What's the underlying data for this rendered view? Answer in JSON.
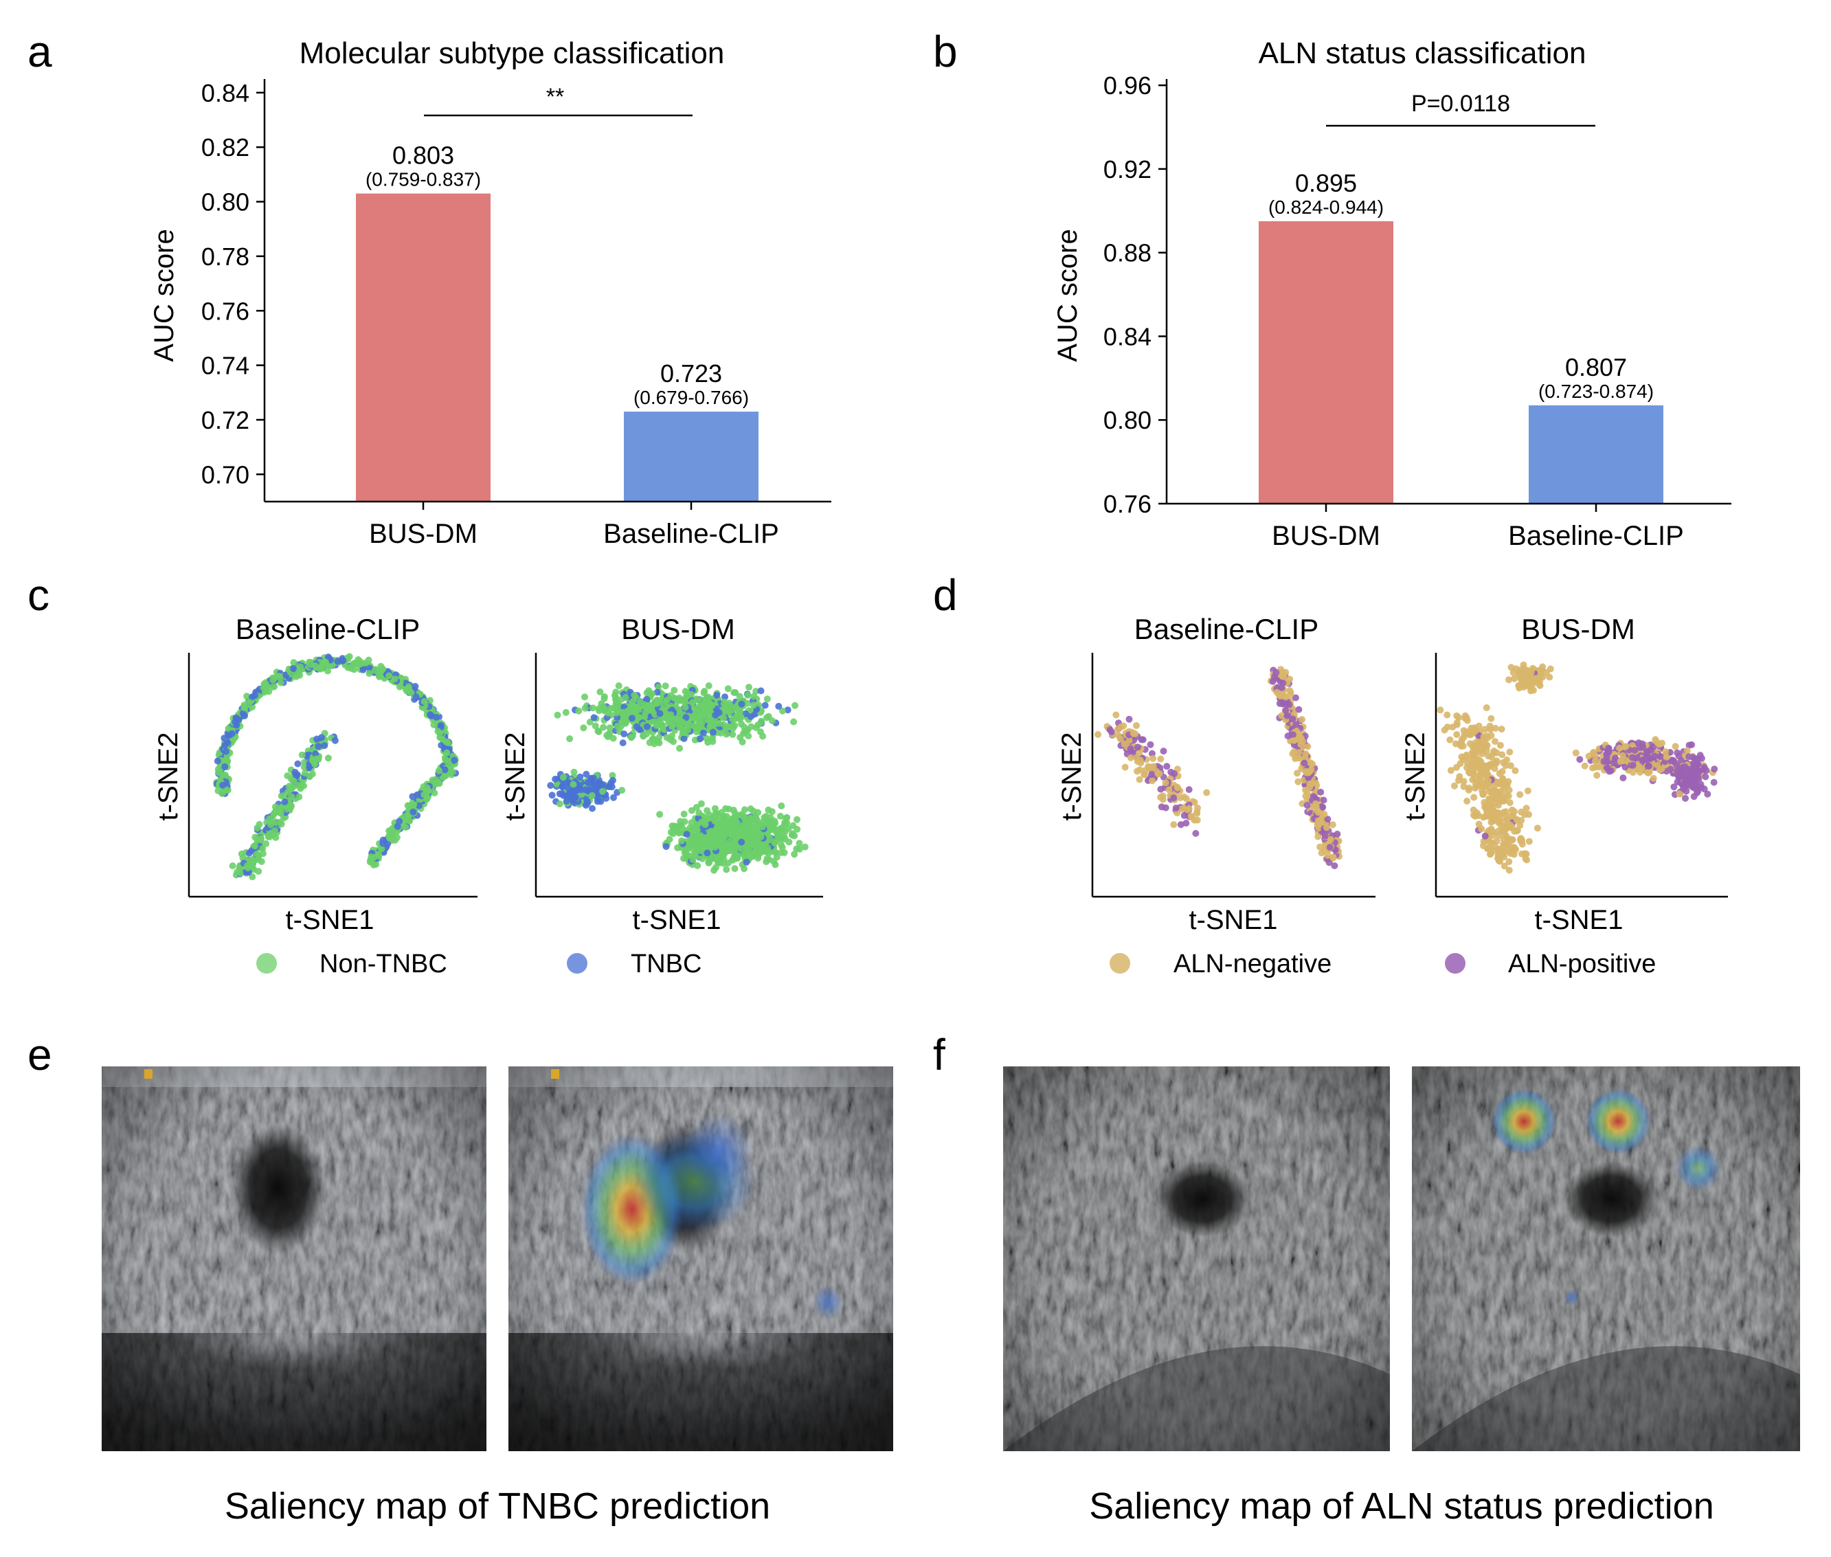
{
  "panel_letters": [
    "a",
    "b",
    "c",
    "d",
    "e",
    "f"
  ],
  "chart_data": [
    {
      "panel": "a",
      "type": "bar",
      "title": "Molecular subtype classification",
      "ylabel": "AUC score",
      "xlabel": "",
      "categories": [
        "BUS-DM",
        "Baseline-CLIP"
      ],
      "values": [
        0.803,
        0.723
      ],
      "value_labels": [
        "0.803",
        "0.723"
      ],
      "ci_labels": [
        "(0.759-0.837)",
        "(0.679-0.766)"
      ],
      "colors": [
        "#de7b7b",
        "#6f96dd"
      ],
      "ylim": [
        0.69,
        0.845
      ],
      "yticks": [
        0.7,
        0.72,
        0.74,
        0.76,
        0.78,
        0.8,
        0.82,
        0.84
      ],
      "ytick_labels": [
        "0.70",
        "0.72",
        "0.74",
        "0.76",
        "0.78",
        "0.80",
        "0.82",
        "0.84"
      ],
      "significance": "**"
    },
    {
      "panel": "b",
      "type": "bar",
      "title": "ALN status classification",
      "ylabel": "AUC score",
      "xlabel": "",
      "categories": [
        "BUS-DM",
        "Baseline-CLIP"
      ],
      "values": [
        0.895,
        0.807
      ],
      "value_labels": [
        "0.895",
        "0.807"
      ],
      "ci_labels": [
        "(0.824-0.944)",
        "(0.723-0.874)"
      ],
      "colors": [
        "#de7b7b",
        "#6f96dd"
      ],
      "ylim": [
        0.76,
        0.963
      ],
      "yticks": [
        0.76,
        0.8,
        0.84,
        0.88,
        0.92,
        0.96
      ],
      "ytick_labels": [
        "0.76",
        "0.80",
        "0.84",
        "0.88",
        "0.92",
        "0.96"
      ],
      "significance": "P=0.0118"
    },
    {
      "panel": "c",
      "type": "scatter",
      "xlabel": "t-SNE1",
      "ylabel": "t-SNE2",
      "subplots": [
        "Baseline-CLIP",
        "BUS-DM"
      ],
      "legend": [
        {
          "name": "Non-TNBC",
          "color": "#6ccf6a"
        },
        {
          "name": "TNBC",
          "color": "#4a72d4"
        }
      ],
      "grid": false
    },
    {
      "panel": "d",
      "type": "scatter",
      "xlabel": "t-SNE1",
      "ylabel": "t-SNE2",
      "subplots": [
        "Baseline-CLIP",
        "BUS-DM"
      ],
      "legend": [
        {
          "name": "ALN-negative",
          "color": "#d8b66a"
        },
        {
          "name": "ALN-positive",
          "color": "#9a62b4"
        }
      ],
      "grid": false
    }
  ],
  "saliency": {
    "e_caption": "Saliency map of TNBC prediction",
    "f_caption": "Saliency map of ALN status prediction"
  }
}
